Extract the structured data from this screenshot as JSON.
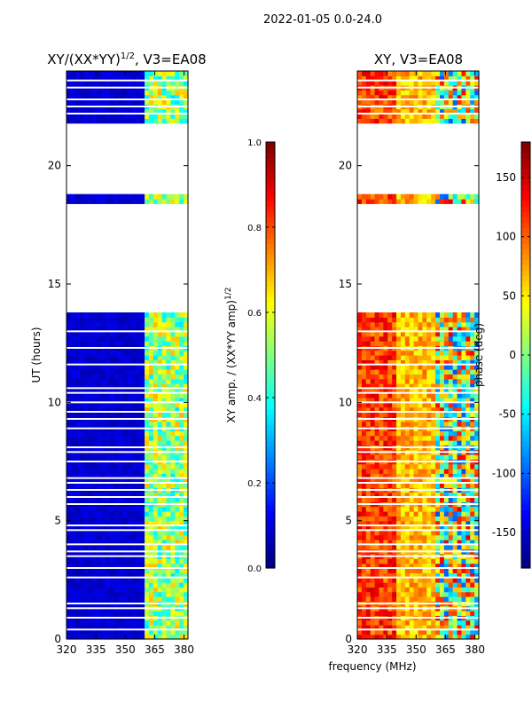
{
  "suptitle": "2022-01-05 0.0-24.0",
  "chart_data": [
    {
      "type": "heatmap",
      "title_main": "XY/(XX*YY)",
      "title_exp": "1/2",
      "title_rest": ", V3=EA08",
      "xlabel": "",
      "ylabel": "UT (hours)",
      "xlim": [
        320,
        382
      ],
      "ylim": [
        0,
        24
      ],
      "xticks": [
        "320",
        "335",
        "350",
        "365",
        "380"
      ],
      "yticks": [
        "0",
        "5",
        "10",
        "15",
        "20"
      ],
      "colorbar": {
        "label_main": "XY amp. / (XX*YY amp)",
        "label_exp": "1/2",
        "range": [
          0.0,
          1.0
        ],
        "ticks": [
          "0.0",
          "0.2",
          "0.4",
          "0.6",
          "0.8",
          "1.0"
        ],
        "colormap": "jet"
      },
      "gaps_hours": [
        [
          13.8,
          18.3
        ],
        [
          18.7,
          21.8
        ]
      ],
      "high_band_mhz": [
        360,
        382
      ]
    },
    {
      "type": "heatmap",
      "title_main": "XY, V3=EA08",
      "xlabel": "frequency (MHz)",
      "ylabel": "",
      "xlim": [
        320,
        382
      ],
      "ylim": [
        0,
        24
      ],
      "xticks": [
        "320",
        "335",
        "350",
        "365",
        "380"
      ],
      "yticks": [
        "0",
        "5",
        "10",
        "15",
        "20"
      ],
      "colorbar": {
        "label_main": "phase (deg)",
        "range": [
          -180,
          180
        ],
        "ticks": [
          "-150",
          "-100",
          "-50",
          "0",
          "50",
          "100",
          "150"
        ],
        "colormap": "jet"
      },
      "gaps_hours": [
        [
          13.8,
          18.3
        ],
        [
          18.7,
          21.8
        ]
      ]
    }
  ],
  "colors": {
    "background": "#ffffff",
    "frame": "#000000"
  }
}
